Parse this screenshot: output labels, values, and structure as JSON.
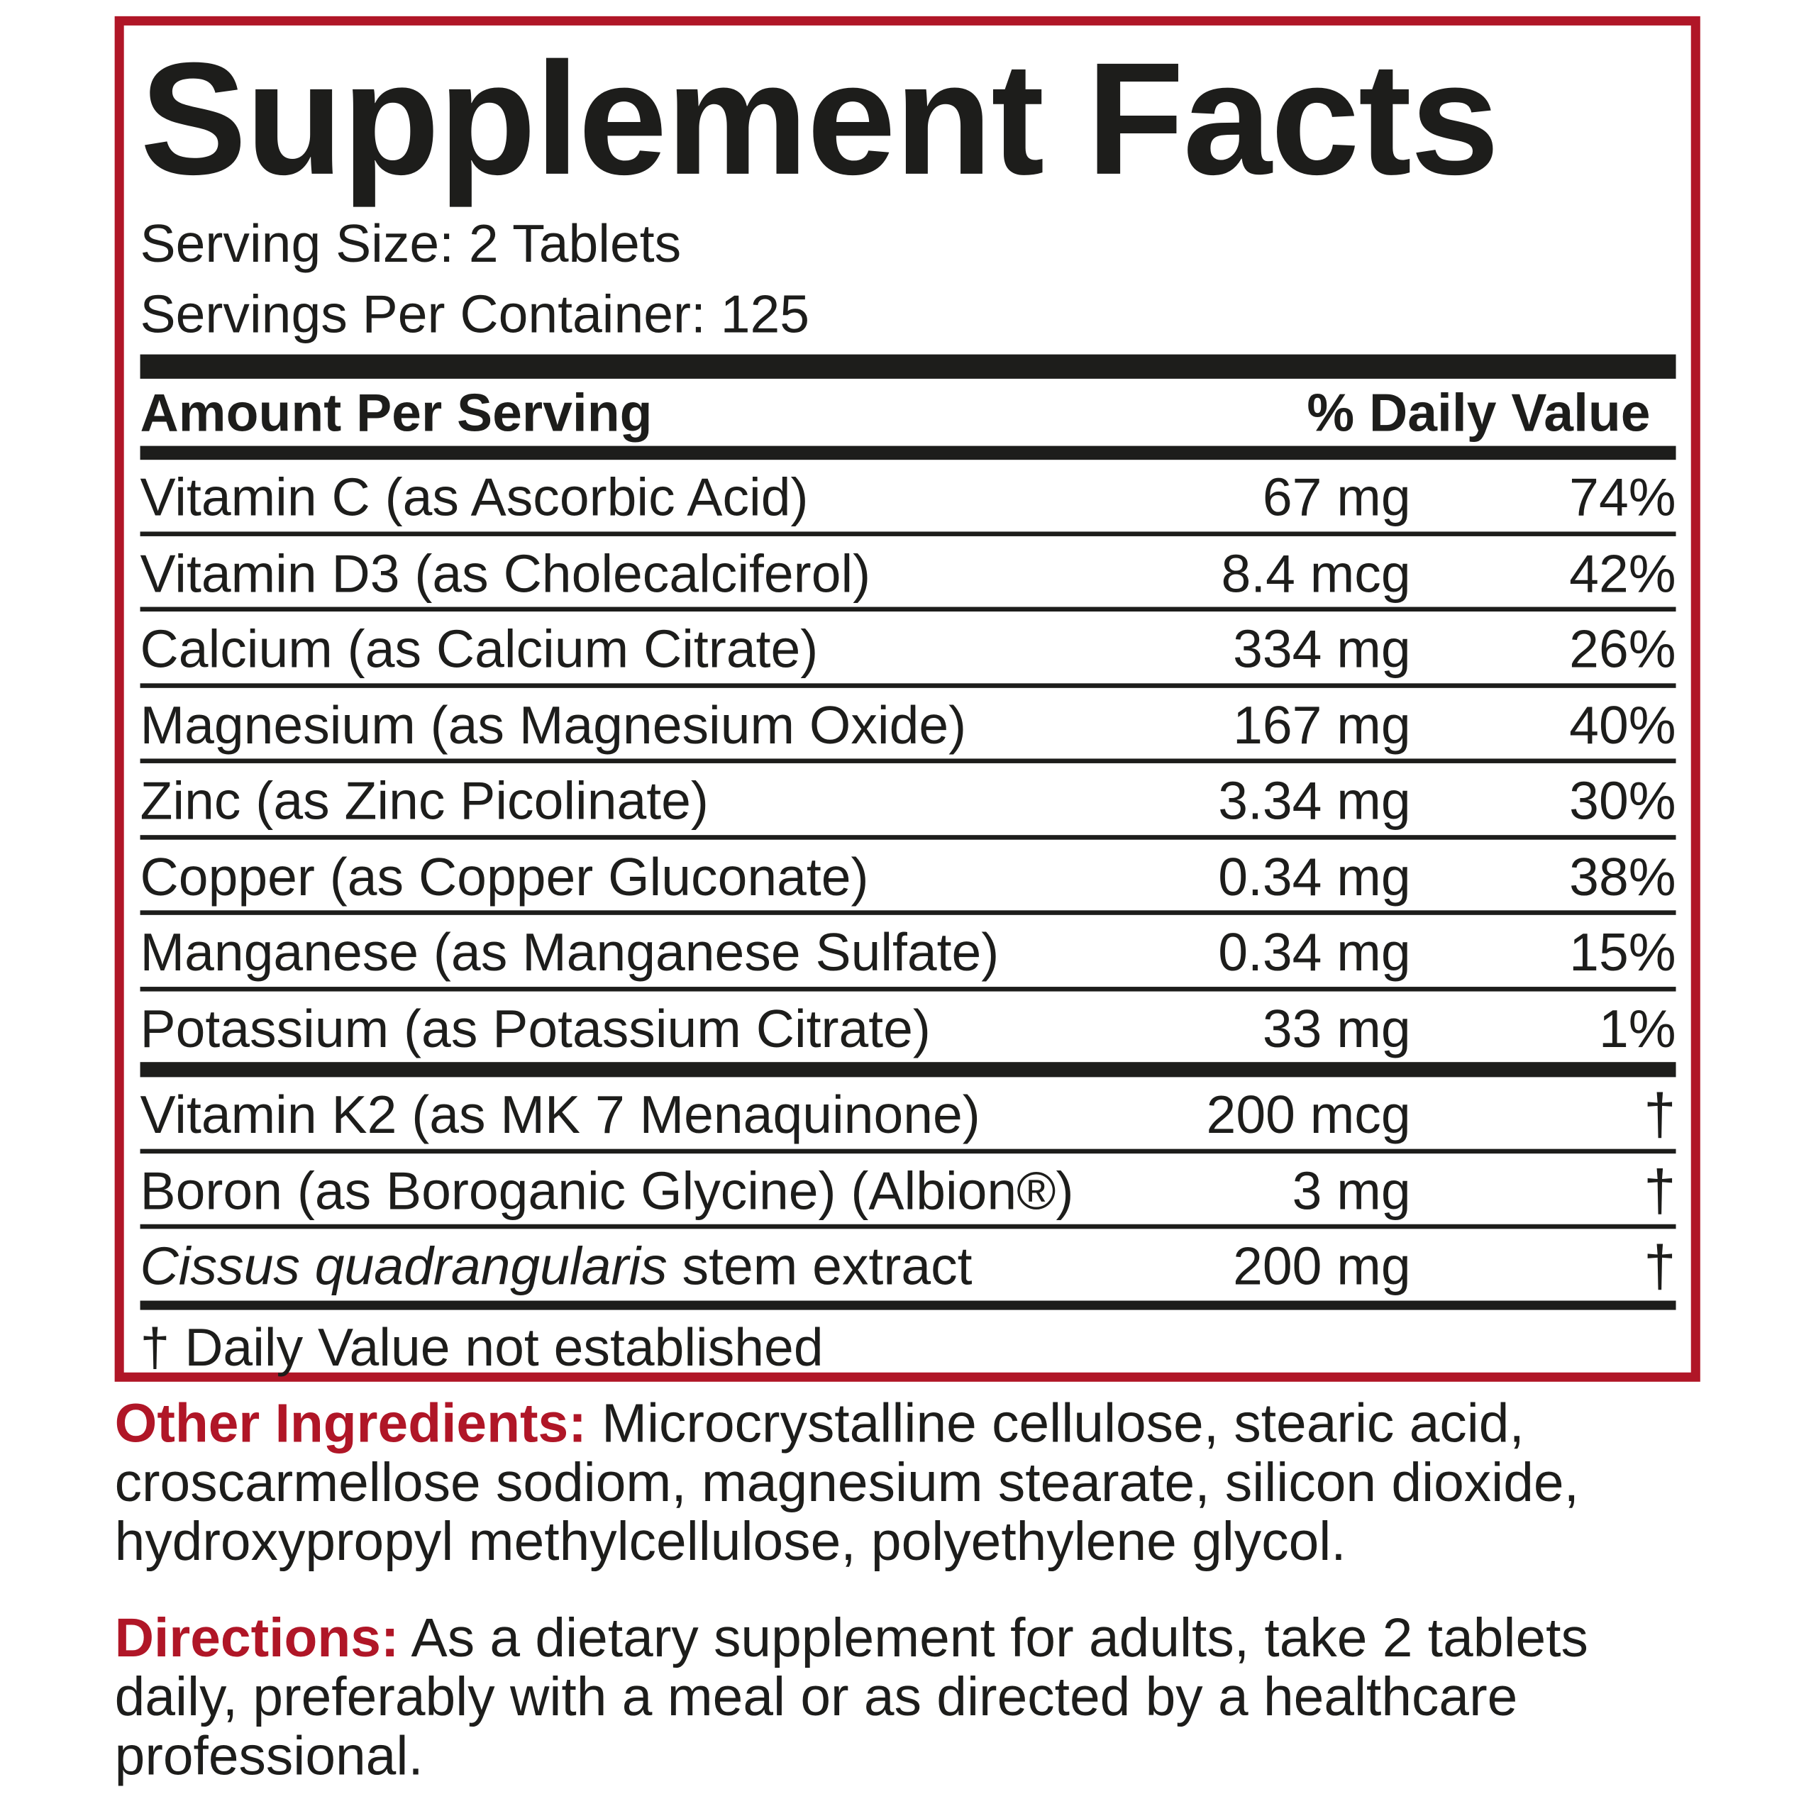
{
  "title": "Supplement Facts",
  "serving_size": "Serving Size: 2 Tablets",
  "servings_per_container": "Servings Per Container: 125",
  "header": {
    "amount": "Amount Per Serving",
    "dv": "% Daily Value"
  },
  "rows": [
    {
      "name": "Vitamin C (as Ascorbic Acid)",
      "amount": "67 mg",
      "dv": "74%"
    },
    {
      "name": "Vitamin D3 (as Cholecalciferol)",
      "amount": "8.4 mcg",
      "dv": "42%"
    },
    {
      "name": "Calcium (as Calcium Citrate)",
      "amount": "334 mg",
      "dv": "26%"
    },
    {
      "name": "Magnesium (as Magnesium Oxide)",
      "amount": "167 mg",
      "dv": "40%"
    },
    {
      "name": "Zinc (as Zinc Picolinate)",
      "amount": "3.34 mg",
      "dv": "30%"
    },
    {
      "name": "Copper (as Copper Gluconate)",
      "amount": "0.34 mg",
      "dv": "38%"
    },
    {
      "name": "Manganese (as Manganese Sulfate)",
      "amount": "0.34 mg",
      "dv": "15%"
    },
    {
      "name": "Potassium (as Potassium Citrate)",
      "amount": "33 mg",
      "dv": "1%"
    }
  ],
  "rows2": [
    {
      "name": "Vitamin K2 (as MK 7 Menaquinone)",
      "amount": "200 mcg",
      "dv": "†"
    },
    {
      "name": "Boron (as Boroganic Glycine) (Albion®)",
      "amount": "3 mg",
      "dv": "†"
    },
    {
      "name_italic": "Cissus quadrangularis",
      "name_rest": " stem extract",
      "amount": "200 mg",
      "dv": "†"
    }
  ],
  "footnote": "† Daily Value not established",
  "other": {
    "label": "Other Ingredients:",
    "text": " Microcrystalline cellulose, stearic acid, croscarmellose sodiom, magnesium stearate, silicon dioxide, hydroxypropyl methylcellulose, polyethylene glycol."
  },
  "directions": {
    "label": "Directions:",
    "text": " As a dietary supplement for adults, take 2 tablets daily, preferably with a meal or as directed by a healthcare professional."
  },
  "colors": {
    "accent": "#b01627",
    "text": "#1d1d1b"
  }
}
